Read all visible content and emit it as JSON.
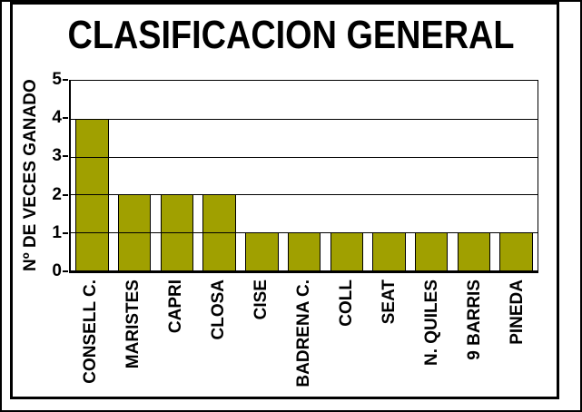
{
  "chart_data": {
    "type": "bar",
    "title": "CLASIFICACION GENERAL",
    "ylabel": "Nº DE VECES GANADO",
    "xlabel": "",
    "categories": [
      "CONSELL C.",
      "MARISTES",
      "CAPRI",
      "CLOSA",
      "CISE",
      "BADRENA C.",
      "COLL",
      "SEAT",
      "N. QUILES",
      "9 BARRIS",
      "PINEDA"
    ],
    "values": [
      4,
      2,
      2,
      2,
      1,
      1,
      1,
      1,
      1,
      1,
      1
    ],
    "ylim": [
      0,
      5
    ],
    "yticks": [
      0,
      1,
      2,
      3,
      4,
      5
    ],
    "grid": true,
    "legend_position": "none",
    "bar_color": "#A0A000",
    "bar_border_color": "#000000",
    "axis_color": "#000000",
    "background_color": "#FFFFFF",
    "frame_color": "#000000"
  }
}
